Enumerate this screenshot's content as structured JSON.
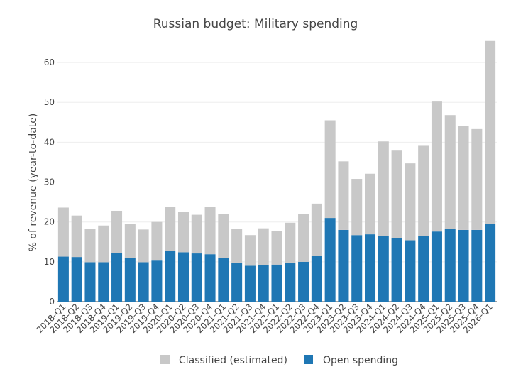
{
  "chart_data": {
    "type": "bar",
    "stacked": true,
    "title": "Russian budget: Military spending",
    "xlabel": "",
    "ylabel": "% of revenue (year-to-date)",
    "ylim": [
      0,
      65
    ],
    "yticks": [
      0,
      10,
      20,
      30,
      40,
      50,
      60
    ],
    "grid": true,
    "legend_position": "bottom",
    "categories": [
      "2018-Q1",
      "2018-Q2",
      "2018-Q3",
      "2018-Q4",
      "2019-Q1",
      "2019-Q2",
      "2019-Q3",
      "2019-Q4",
      "2020-Q1",
      "2020-Q2",
      "2020-Q3",
      "2020-Q4",
      "2021-Q1",
      "2021-Q2",
      "2021-Q3",
      "2021-Q4",
      "2022-Q1",
      "2022-Q2",
      "2022-Q3",
      "2022-Q4",
      "2023-Q1",
      "2023-Q2",
      "2023-Q3",
      "2023-Q4",
      "2024-Q1",
      "2024-Q2",
      "2024-Q3",
      "2024-Q4",
      "2025-Q1",
      "2025-Q2",
      "2025-Q3",
      "2025-Q4",
      "2026-Q1"
    ],
    "series": [
      {
        "name": "Open spending",
        "color": "#1f77b4",
        "values": [
          11.3,
          11.2,
          9.9,
          9.9,
          12.2,
          11.0,
          9.9,
          10.3,
          12.8,
          12.4,
          12.1,
          11.9,
          11.0,
          9.8,
          9.0,
          9.1,
          9.3,
          9.8,
          10.0,
          11.5,
          21.0,
          18.0,
          16.7,
          16.9,
          16.4,
          16.0,
          15.4,
          16.5,
          17.6,
          18.2,
          18.0,
          18.0,
          19.5
        ]
      },
      {
        "name": "Classified (estimated)",
        "color": "#c8c8c8",
        "values": [
          12.3,
          10.4,
          8.4,
          9.2,
          10.6,
          8.5,
          8.2,
          9.7,
          11.0,
          10.1,
          9.7,
          11.8,
          11.0,
          8.5,
          7.7,
          9.3,
          8.5,
          10.0,
          12.0,
          13.1,
          24.5,
          17.2,
          14.1,
          15.2,
          23.8,
          21.9,
          19.3,
          22.6,
          32.6,
          28.6,
          26.1,
          25.3,
          45.9
        ]
      }
    ],
    "legend": [
      {
        "name": "Classified (estimated)",
        "color": "#c8c8c8"
      },
      {
        "name": "Open spending",
        "color": "#1f77b4"
      }
    ]
  }
}
